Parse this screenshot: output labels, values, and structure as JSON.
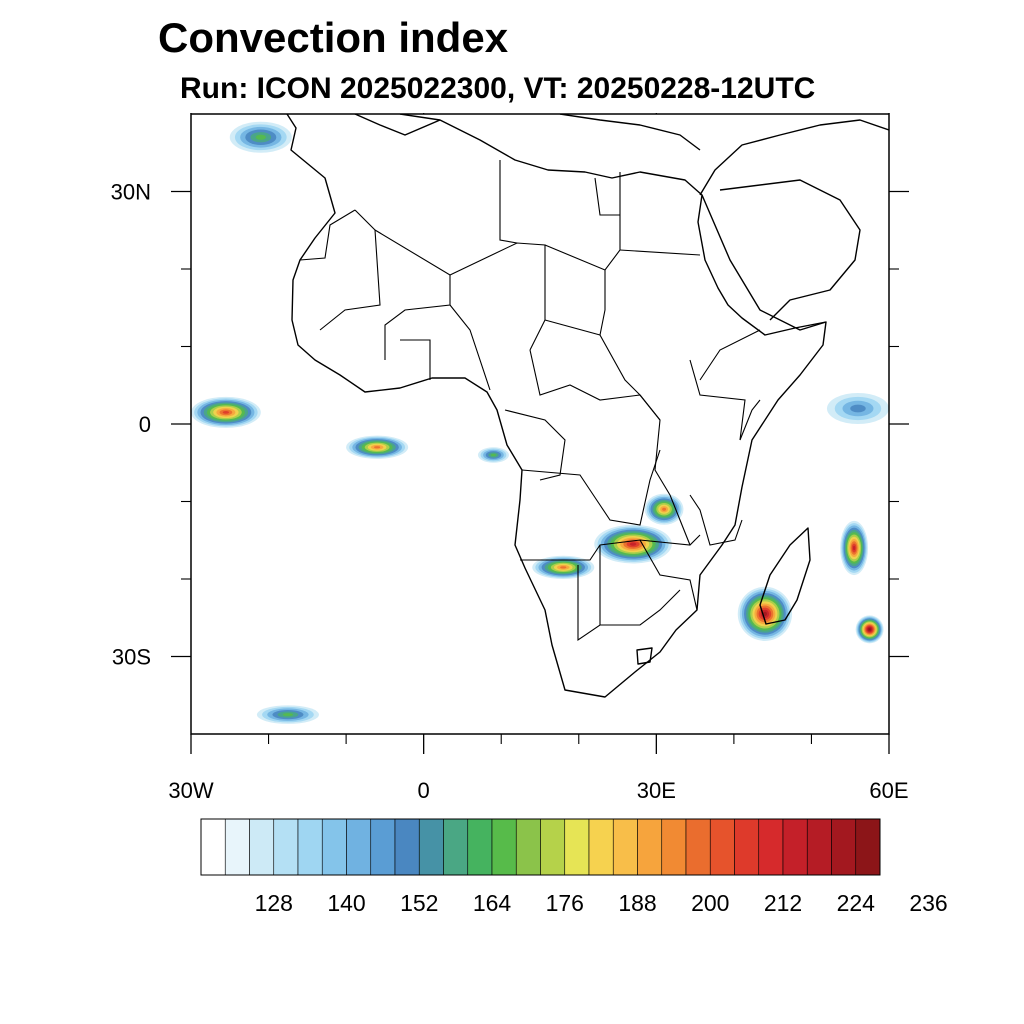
{
  "title": "Convection index",
  "subtitle": "Run: ICON 2025022300,  VT: 20250228-12UTC",
  "map": {
    "lon_range": [
      -30,
      60
    ],
    "lat_range": [
      -40,
      40
    ],
    "lon_ticks": [
      {
        "lon": -30,
        "label": "30W"
      },
      {
        "lon": 0,
        "label": "0"
      },
      {
        "lon": 30,
        "label": "30E"
      },
      {
        "lon": 60,
        "label": "60E"
      }
    ],
    "lat_ticks": [
      {
        "lat": 30,
        "label": "30N"
      },
      {
        "lat": 0,
        "label": "0"
      },
      {
        "lat": -30,
        "label": "30S"
      }
    ],
    "minor_lon_ticks": [
      -20,
      -10,
      10,
      20,
      40,
      50
    ],
    "minor_lat_ticks": [
      20,
      10,
      -10,
      -20
    ]
  },
  "convection_cells": [
    {
      "name": "atlantic-west-cell",
      "lon": -25.5,
      "lat": 1.5,
      "rlon": 4.5,
      "rlat": 2.0,
      "peak": 205
    },
    {
      "name": "gulf-of-guinea-cell",
      "lon": -6.0,
      "lat": -3.0,
      "rlon": 4.0,
      "rlat": 1.5,
      "peak": 200
    },
    {
      "name": "zambia-cell",
      "lon": 27.0,
      "lat": -15.5,
      "rlon": 5.0,
      "rlat": 2.5,
      "peak": 212
    },
    {
      "name": "malawi-cell",
      "lon": 31.0,
      "lat": -11.0,
      "rlon": 2.5,
      "rlat": 2.0,
      "peak": 200
    },
    {
      "name": "namibia-angola-cell",
      "lon": 18.0,
      "lat": -18.5,
      "rlon": 4.0,
      "rlat": 1.5,
      "peak": 200
    },
    {
      "name": "mozambique-channel-cyclone",
      "lon": 44.0,
      "lat": -24.5,
      "rlon": 3.5,
      "rlat": 3.5,
      "peak": 224
    },
    {
      "name": "madagascar-east-cell",
      "lon": 55.5,
      "lat": -16.0,
      "rlon": 1.8,
      "rlat": 3.5,
      "peak": 212
    },
    {
      "name": "mascarene-cyclone",
      "lon": 57.5,
      "lat": -26.5,
      "rlon": 1.8,
      "rlat": 1.8,
      "peak": 230
    },
    {
      "name": "mediterranean-west-cell",
      "lon": -21.0,
      "lat": 37.0,
      "rlon": 4.0,
      "rlat": 2.0,
      "peak": 170
    },
    {
      "name": "south-atlantic-cell",
      "lon": -17.5,
      "lat": -37.5,
      "rlon": 4.0,
      "rlat": 1.2,
      "peak": 170
    },
    {
      "name": "congo-basin-cell",
      "lon": 9.0,
      "lat": -4.0,
      "rlon": 2.0,
      "rlat": 1.0,
      "peak": 165
    },
    {
      "name": "indian-ocean-band",
      "lon": 56.0,
      "lat": 2.0,
      "rlon": 4.0,
      "rlat": 2.0,
      "peak": 150
    }
  ],
  "colorbar": {
    "colors": [
      "#ffffff",
      "#e8f5fb",
      "#cdeaf6",
      "#b4e0f4",
      "#9fd6f2",
      "#84c4ea",
      "#70b2e1",
      "#5a9dd4",
      "#4a87c1",
      "#4692a6",
      "#4aa784",
      "#45b35f",
      "#57bb4a",
      "#8bc34a",
      "#b5d24a",
      "#e6e455",
      "#f6d24f",
      "#f8be49",
      "#f6a43d",
      "#f18a33",
      "#ea6d2e",
      "#e6532c",
      "#de3a2b",
      "#d62a2c",
      "#c42029",
      "#b51c25",
      "#a3181f",
      "#8c1518"
    ],
    "labels": [
      "128",
      "140",
      "152",
      "164",
      "176",
      "188",
      "200",
      "212",
      "224",
      "236"
    ]
  }
}
